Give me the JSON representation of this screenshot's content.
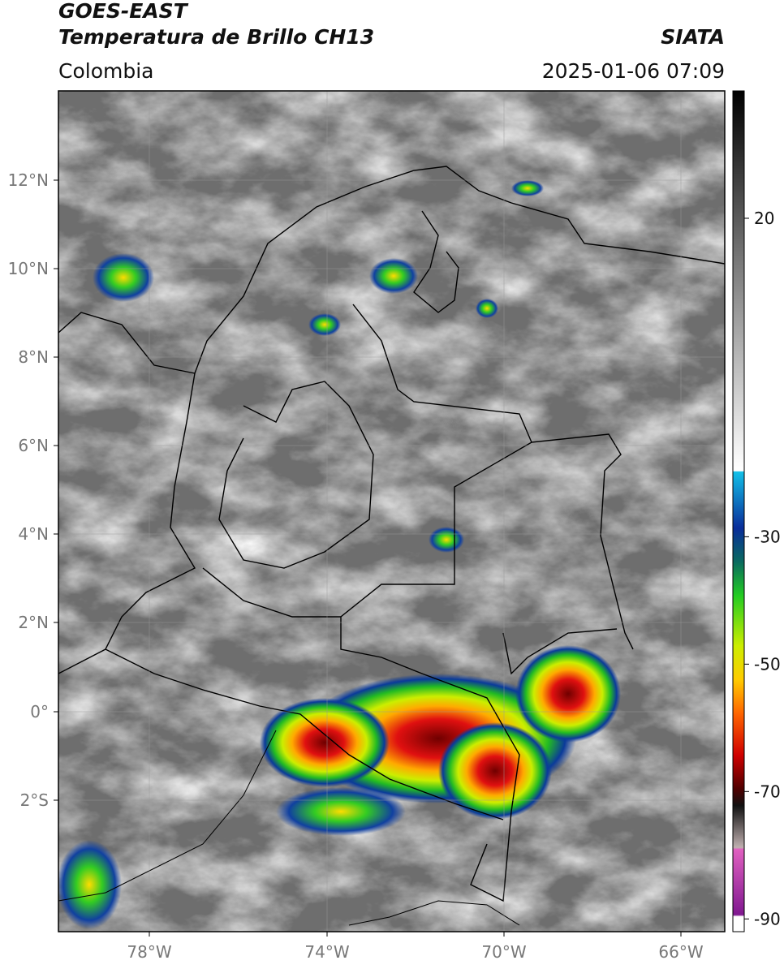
{
  "header": {
    "satellite": "GOES-EAST",
    "product": "Temperatura de Brillo CH13",
    "region": "Colombia",
    "source": "SIATA",
    "datetime": "2025-01-06 07:09"
  },
  "map": {
    "lat_labels": [
      "12°N",
      "10°N",
      "8°N",
      "6°N",
      "4°N",
      "2°N",
      "0°",
      "2°S"
    ],
    "lon_labels": [
      "78°W",
      "74°W",
      "70°W",
      "66°W"
    ]
  },
  "colorbar": {
    "lim": [
      -92,
      40
    ],
    "ticks": [
      20,
      -30,
      -50,
      -70,
      -90
    ]
  }
}
